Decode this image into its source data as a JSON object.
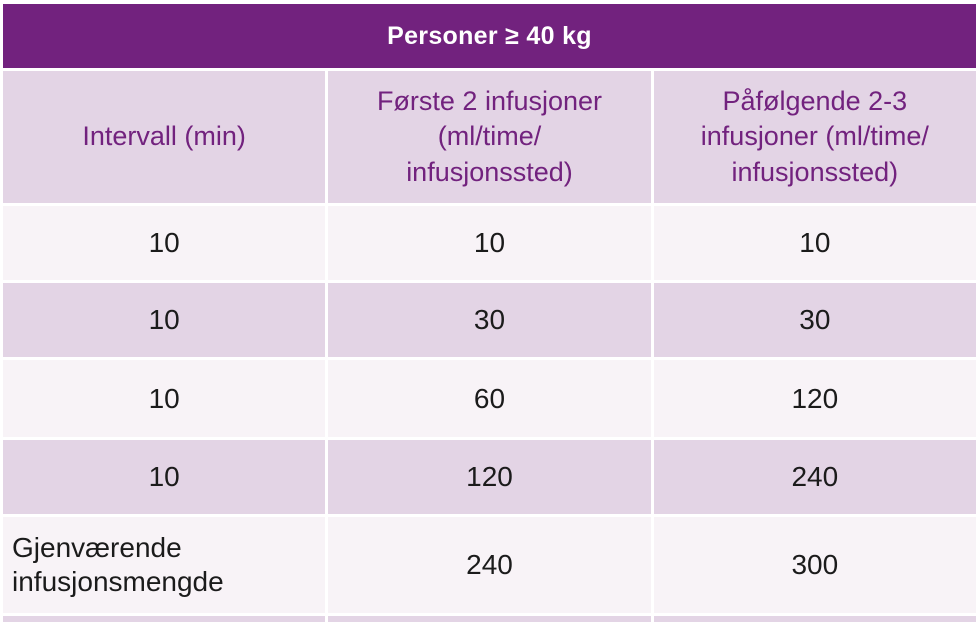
{
  "title": "Personer ≥ 40 kg",
  "colors": {
    "header_purple": "#72227E",
    "lavender": "#E3D4E5",
    "row_light": "#F8F3F7",
    "body_text": "#1b1b1b",
    "title_text": "#ffffff"
  },
  "table": {
    "columns": [
      "Intervall (min)",
      "Første 2 infusjoner\n(ml/time/\ninfusjonssted)",
      "Påfølgende 2-3\ninfusjoner (ml/time/\ninfusjonssted)"
    ],
    "rows": [
      {
        "cells": [
          "10",
          "10",
          "10"
        ]
      },
      {
        "cells": [
          "10",
          "30",
          "30"
        ]
      },
      {
        "cells": [
          "10",
          "60",
          "120"
        ]
      },
      {
        "cells": [
          "10",
          "120",
          "240"
        ]
      },
      {
        "cells": [
          "Gjenværende\ninfusjonsmengde",
          "240",
          "300"
        ]
      }
    ]
  }
}
